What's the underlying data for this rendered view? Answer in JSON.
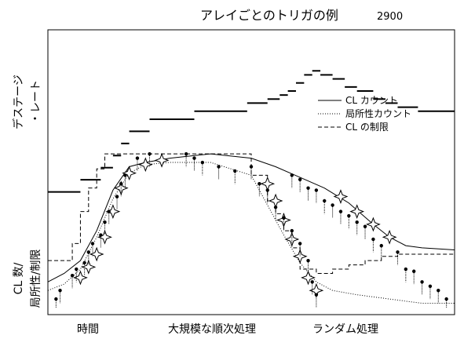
{
  "chart_data": {
    "type": "line",
    "title": "アレイごとのトリガの例",
    "title_number": "2900",
    "ylabel_top": [
      "デステージ",
      "・レート"
    ],
    "ylabel_bottom": [
      "CL 数/",
      "局所性/制限"
    ],
    "x_phases": [
      "時間",
      "大規模な順次処理",
      "ランダム処理"
    ],
    "grid": false,
    "legend_position": "upper-right",
    "legend": [
      {
        "label": "CL カウント",
        "dash": "solid"
      },
      {
        "label": "局所性カウント",
        "dash": "dotted"
      },
      {
        "label": "CL の制限",
        "dash": "dashed"
      }
    ],
    "xlim": [
      0,
      100
    ],
    "ylim": [
      0,
      100
    ],
    "destage_rate": [
      {
        "x0": 0,
        "x1": 8,
        "y": 73
      },
      {
        "x0": 8,
        "x1": 13,
        "y": 76
      },
      {
        "x0": 13,
        "x1": 16,
        "y": 79
      },
      {
        "x0": 16,
        "x1": 18,
        "y": 82
      },
      {
        "x0": 18,
        "x1": 20,
        "y": 85
      },
      {
        "x0": 20,
        "x1": 25,
        "y": 88
      },
      {
        "x0": 25,
        "x1": 36,
        "y": 91
      },
      {
        "x0": 36,
        "x1": 49,
        "y": 93
      },
      {
        "x0": 49,
        "x1": 54,
        "y": 95
      },
      {
        "x0": 54,
        "x1": 57,
        "y": 96
      },
      {
        "x0": 57,
        "x1": 59,
        "y": 97
      },
      {
        "x0": 59,
        "x1": 61,
        "y": 98
      },
      {
        "x0": 61,
        "x1": 63,
        "y": 100
      },
      {
        "x0": 63,
        "x1": 65,
        "y": 102
      },
      {
        "x0": 65,
        "x1": 67,
        "y": 103
      },
      {
        "x0": 67,
        "x1": 70,
        "y": 102
      },
      {
        "x0": 70,
        "x1": 73,
        "y": 101
      },
      {
        "x0": 73,
        "x1": 76,
        "y": 99
      },
      {
        "x0": 76,
        "x1": 80,
        "y": 98
      },
      {
        "x0": 80,
        "x1": 83,
        "y": 96
      },
      {
        "x0": 83,
        "x1": 86,
        "y": 95
      },
      {
        "x0": 86,
        "x1": 91,
        "y": 94
      },
      {
        "x0": 91,
        "x1": 100,
        "y": 93
      }
    ],
    "cl_count": [
      [
        0,
        12
      ],
      [
        4,
        16
      ],
      [
        8,
        22
      ],
      [
        12,
        36
      ],
      [
        16,
        55
      ],
      [
        20,
        66
      ],
      [
        24,
        68
      ],
      [
        30,
        70
      ],
      [
        40,
        72
      ],
      [
        50,
        70
      ],
      [
        56,
        66
      ],
      [
        62,
        61
      ],
      [
        68,
        56
      ],
      [
        74,
        49
      ],
      [
        80,
        39
      ],
      [
        84,
        33
      ],
      [
        88,
        29
      ],
      [
        92,
        28
      ],
      [
        100,
        27
      ]
    ],
    "locality_count": [
      [
        0,
        8
      ],
      [
        4,
        11
      ],
      [
        8,
        18
      ],
      [
        12,
        33
      ],
      [
        16,
        51
      ],
      [
        20,
        63
      ],
      [
        24,
        67
      ],
      [
        30,
        68
      ],
      [
        40,
        68
      ],
      [
        50,
        62
      ],
      [
        54,
        48
      ],
      [
        58,
        34
      ],
      [
        62,
        21
      ],
      [
        66,
        12
      ],
      [
        70,
        8
      ],
      [
        76,
        6
      ],
      [
        84,
        4
      ],
      [
        92,
        2
      ],
      [
        100,
        2
      ]
    ],
    "cl_limit": [
      [
        0,
        22
      ],
      [
        6,
        22
      ],
      [
        6,
        30
      ],
      [
        8,
        30
      ],
      [
        8,
        45
      ],
      [
        10,
        45
      ],
      [
        10,
        56
      ],
      [
        12,
        56
      ],
      [
        12,
        65
      ],
      [
        14,
        65
      ],
      [
        14,
        72
      ],
      [
        50,
        72
      ],
      [
        50,
        62
      ],
      [
        54,
        62
      ],
      [
        54,
        50
      ],
      [
        56,
        50
      ],
      [
        56,
        44
      ],
      [
        58,
        44
      ],
      [
        58,
        36
      ],
      [
        60,
        36
      ],
      [
        60,
        28
      ],
      [
        62,
        28
      ],
      [
        62,
        18
      ],
      [
        66,
        18
      ],
      [
        66,
        16
      ],
      [
        70,
        16
      ],
      [
        70,
        18
      ],
      [
        74,
        18
      ],
      [
        74,
        20
      ],
      [
        78,
        20
      ],
      [
        78,
        22
      ],
      [
        82,
        22
      ],
      [
        82,
        24
      ],
      [
        86,
        24
      ],
      [
        86,
        25
      ],
      [
        100,
        25
      ]
    ],
    "trigger_markers": [
      [
        8,
        14
      ],
      [
        10,
        19
      ],
      [
        12,
        25
      ],
      [
        14,
        33
      ],
      [
        16,
        45
      ],
      [
        18,
        56
      ],
      [
        20,
        63
      ],
      [
        24,
        67
      ],
      [
        28,
        69
      ],
      [
        54,
        58
      ],
      [
        56,
        50
      ],
      [
        58,
        41
      ],
      [
        60,
        32
      ],
      [
        62,
        24
      ],
      [
        64,
        14
      ],
      [
        66,
        8
      ],
      [
        72,
        52
      ],
      [
        76,
        45
      ],
      [
        80,
        39
      ],
      [
        84,
        33
      ]
    ],
    "points": [
      [
        2,
        4
      ],
      [
        3,
        8
      ],
      [
        6,
        15
      ],
      [
        7,
        18
      ],
      [
        9,
        21
      ],
      [
        10,
        26
      ],
      [
        11,
        30
      ],
      [
        13,
        34
      ],
      [
        14,
        40
      ],
      [
        15,
        45
      ],
      [
        17,
        52
      ],
      [
        18,
        58
      ],
      [
        19,
        62
      ],
      [
        22,
        70
      ],
      [
        25,
        72
      ],
      [
        34,
        72
      ],
      [
        36,
        70
      ],
      [
        38,
        68
      ],
      [
        42,
        66
      ],
      [
        46,
        64
      ],
      [
        50,
        66
      ],
      [
        52,
        58
      ],
      [
        54,
        55
      ],
      [
        56,
        47
      ],
      [
        58,
        42
      ],
      [
        60,
        36
      ],
      [
        62,
        30
      ],
      [
        64,
        22
      ],
      [
        65,
        12
      ],
      [
        66,
        6
      ],
      [
        60,
        62
      ],
      [
        62,
        60
      ],
      [
        64,
        56
      ],
      [
        66,
        55
      ],
      [
        68,
        50
      ],
      [
        70,
        48
      ],
      [
        72,
        45
      ],
      [
        74,
        43
      ],
      [
        76,
        40
      ],
      [
        78,
        38
      ],
      [
        80,
        32
      ],
      [
        82,
        29
      ],
      [
        86,
        26
      ],
      [
        88,
        18
      ],
      [
        90,
        17
      ],
      [
        92,
        12
      ],
      [
        94,
        10
      ],
      [
        96,
        8
      ],
      [
        98,
        4
      ]
    ]
  }
}
